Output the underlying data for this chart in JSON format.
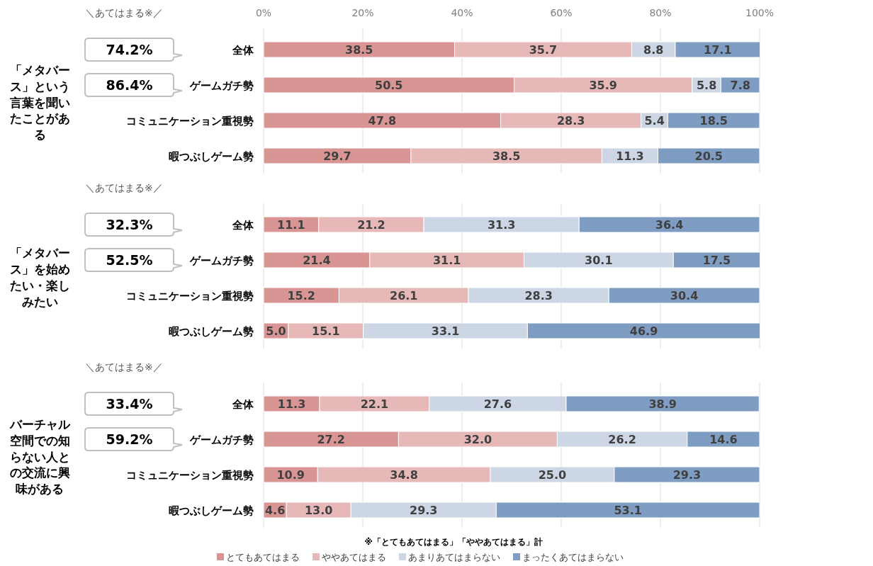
{
  "chart_data": [
    {
      "type": "bar",
      "orientation": "horizontal",
      "stacked": true,
      "title": "「メタバース」という言葉を聞いたことがある",
      "categories": [
        "全体",
        "ゲームガチ勢",
        "コミュニケーション重視勢",
        "暇つぶしゲーム勢"
      ],
      "series": [
        {
          "color": "#d99594",
          "values": [
            38.5,
            50.5,
            47.8,
            29.7
          ],
          "value_labels": [
            "38.5",
            "50.5",
            "47.8",
            "29.7"
          ]
        },
        {
          "color": "#e6b9b8",
          "values": [
            35.7,
            35.9,
            28.3,
            38.5
          ],
          "value_labels": [
            "35.7",
            "35.9",
            "28.3",
            "38.5"
          ]
        },
        {
          "color": "#ccd6e4",
          "values": [
            8.8,
            5.8,
            5.4,
            11.3
          ],
          "value_labels": [
            "8.8",
            "5.8",
            "5.4",
            "11.3"
          ]
        },
        {
          "color": "#7f9cc3",
          "values": [
            17.1,
            7.8,
            18.5,
            20.5
          ],
          "value_labels": [
            "17.1",
            "7.8",
            "18.5",
            "20.5"
          ]
        }
      ],
      "xlim": [
        0,
        100
      ],
      "xticks": [
        {
          "value": 0,
          "label": "0%"
        },
        {
          "value": 20,
          "label": "20%"
        },
        {
          "value": 40,
          "label": "40%"
        },
        {
          "value": 60,
          "label": "60%"
        },
        {
          "value": 80,
          "label": "80%"
        },
        {
          "value": 100,
          "label": "100%"
        }
      ],
      "grid": "x",
      "annotations": [
        "＼あてはまる※／",
        "74.2%",
        "86.4%"
      ]
    },
    {
      "type": "bar",
      "orientation": "horizontal",
      "stacked": true,
      "title": "「メタバース」を始めたい・楽しみたい",
      "categories": [
        "全体",
        "ゲームガチ勢",
        "コミュニケーション重視勢",
        "暇つぶしゲーム勢"
      ],
      "series": [
        {
          "color": "#d99594",
          "values": [
            11.1,
            21.4,
            15.2,
            5.0
          ],
          "value_labels": [
            "11.1",
            "21.4",
            "15.2",
            "5.0"
          ]
        },
        {
          "color": "#e6b9b8",
          "values": [
            21.2,
            31.1,
            26.1,
            15.1
          ],
          "value_labels": [
            "21.2",
            "31.1",
            "26.1",
            "15.1"
          ]
        },
        {
          "color": "#ccd6e4",
          "values": [
            31.3,
            30.1,
            28.3,
            33.1
          ],
          "value_labels": [
            "31.3",
            "30.1",
            "28.3",
            "33.1"
          ]
        },
        {
          "color": "#7f9cc3",
          "values": [
            36.4,
            17.5,
            30.4,
            46.9
          ],
          "value_labels": [
            "36.4",
            "17.5",
            "30.4",
            "46.9"
          ]
        }
      ],
      "xlim": [
        0,
        100
      ],
      "xticks": [
        {
          "value": 0,
          "label": null
        },
        {
          "value": 20,
          "label": null
        },
        {
          "value": 40,
          "label": null
        },
        {
          "value": 60,
          "label": null
        },
        {
          "value": 80,
          "label": null
        },
        {
          "value": 100,
          "label": null
        }
      ],
      "grid": "x",
      "tick_labels": "y",
      "annotations": [
        "＼あてはまる※／",
        "32.3%",
        "52.5%"
      ]
    },
    {
      "type": "bar",
      "orientation": "horizontal",
      "stacked": true,
      "title": "バーチャル空間での知らない人との交流に興味がある",
      "categories": [
        "全体",
        "ゲームガチ勢",
        "コミュニケーション重視勢",
        "暇つぶしゲーム勢"
      ],
      "series": [
        {
          "name": "とてもあてはまる",
          "color": "#d99594",
          "values": [
            11.3,
            27.2,
            10.9,
            4.6
          ],
          "value_labels": [
            "11.3",
            "27.2",
            "10.9",
            "4.6"
          ]
        },
        {
          "name": "ややあてはまる",
          "color": "#e6b9b8",
          "values": [
            22.1,
            32.0,
            34.8,
            13.0
          ],
          "value_labels": [
            "22.1",
            "32.0",
            "34.8",
            "13.0"
          ]
        },
        {
          "name": "あまりあてはまらない",
          "color": "#ccd6e4",
          "values": [
            27.6,
            26.2,
            25.0,
            29.3
          ],
          "value_labels": [
            "27.6",
            "26.2",
            "25.0",
            "29.3"
          ]
        },
        {
          "name": "まったくあてはまらない",
          "color": "#7f9cc3",
          "values": [
            38.9,
            14.6,
            29.3,
            53.1
          ],
          "value_labels": [
            "38.9",
            "14.6",
            "29.3",
            "53.1"
          ]
        }
      ],
      "xlim": [
        0,
        100
      ],
      "xticks": [
        {
          "value": 0,
          "label": null
        },
        {
          "value": 20,
          "label": null
        },
        {
          "value": 40,
          "label": null
        },
        {
          "value": 60,
          "label": null
        },
        {
          "value": 80,
          "label": null
        },
        {
          "value": 100,
          "label": null
        }
      ],
      "grid": "x",
      "tick_labels": "y",
      "legend": "bottom",
      "annotations": [
        "＼あてはまる※／",
        "33.4%",
        "59.2%",
        "※「とてもあてはまる」「ややあてはまる」計"
      ]
    }
  ]
}
